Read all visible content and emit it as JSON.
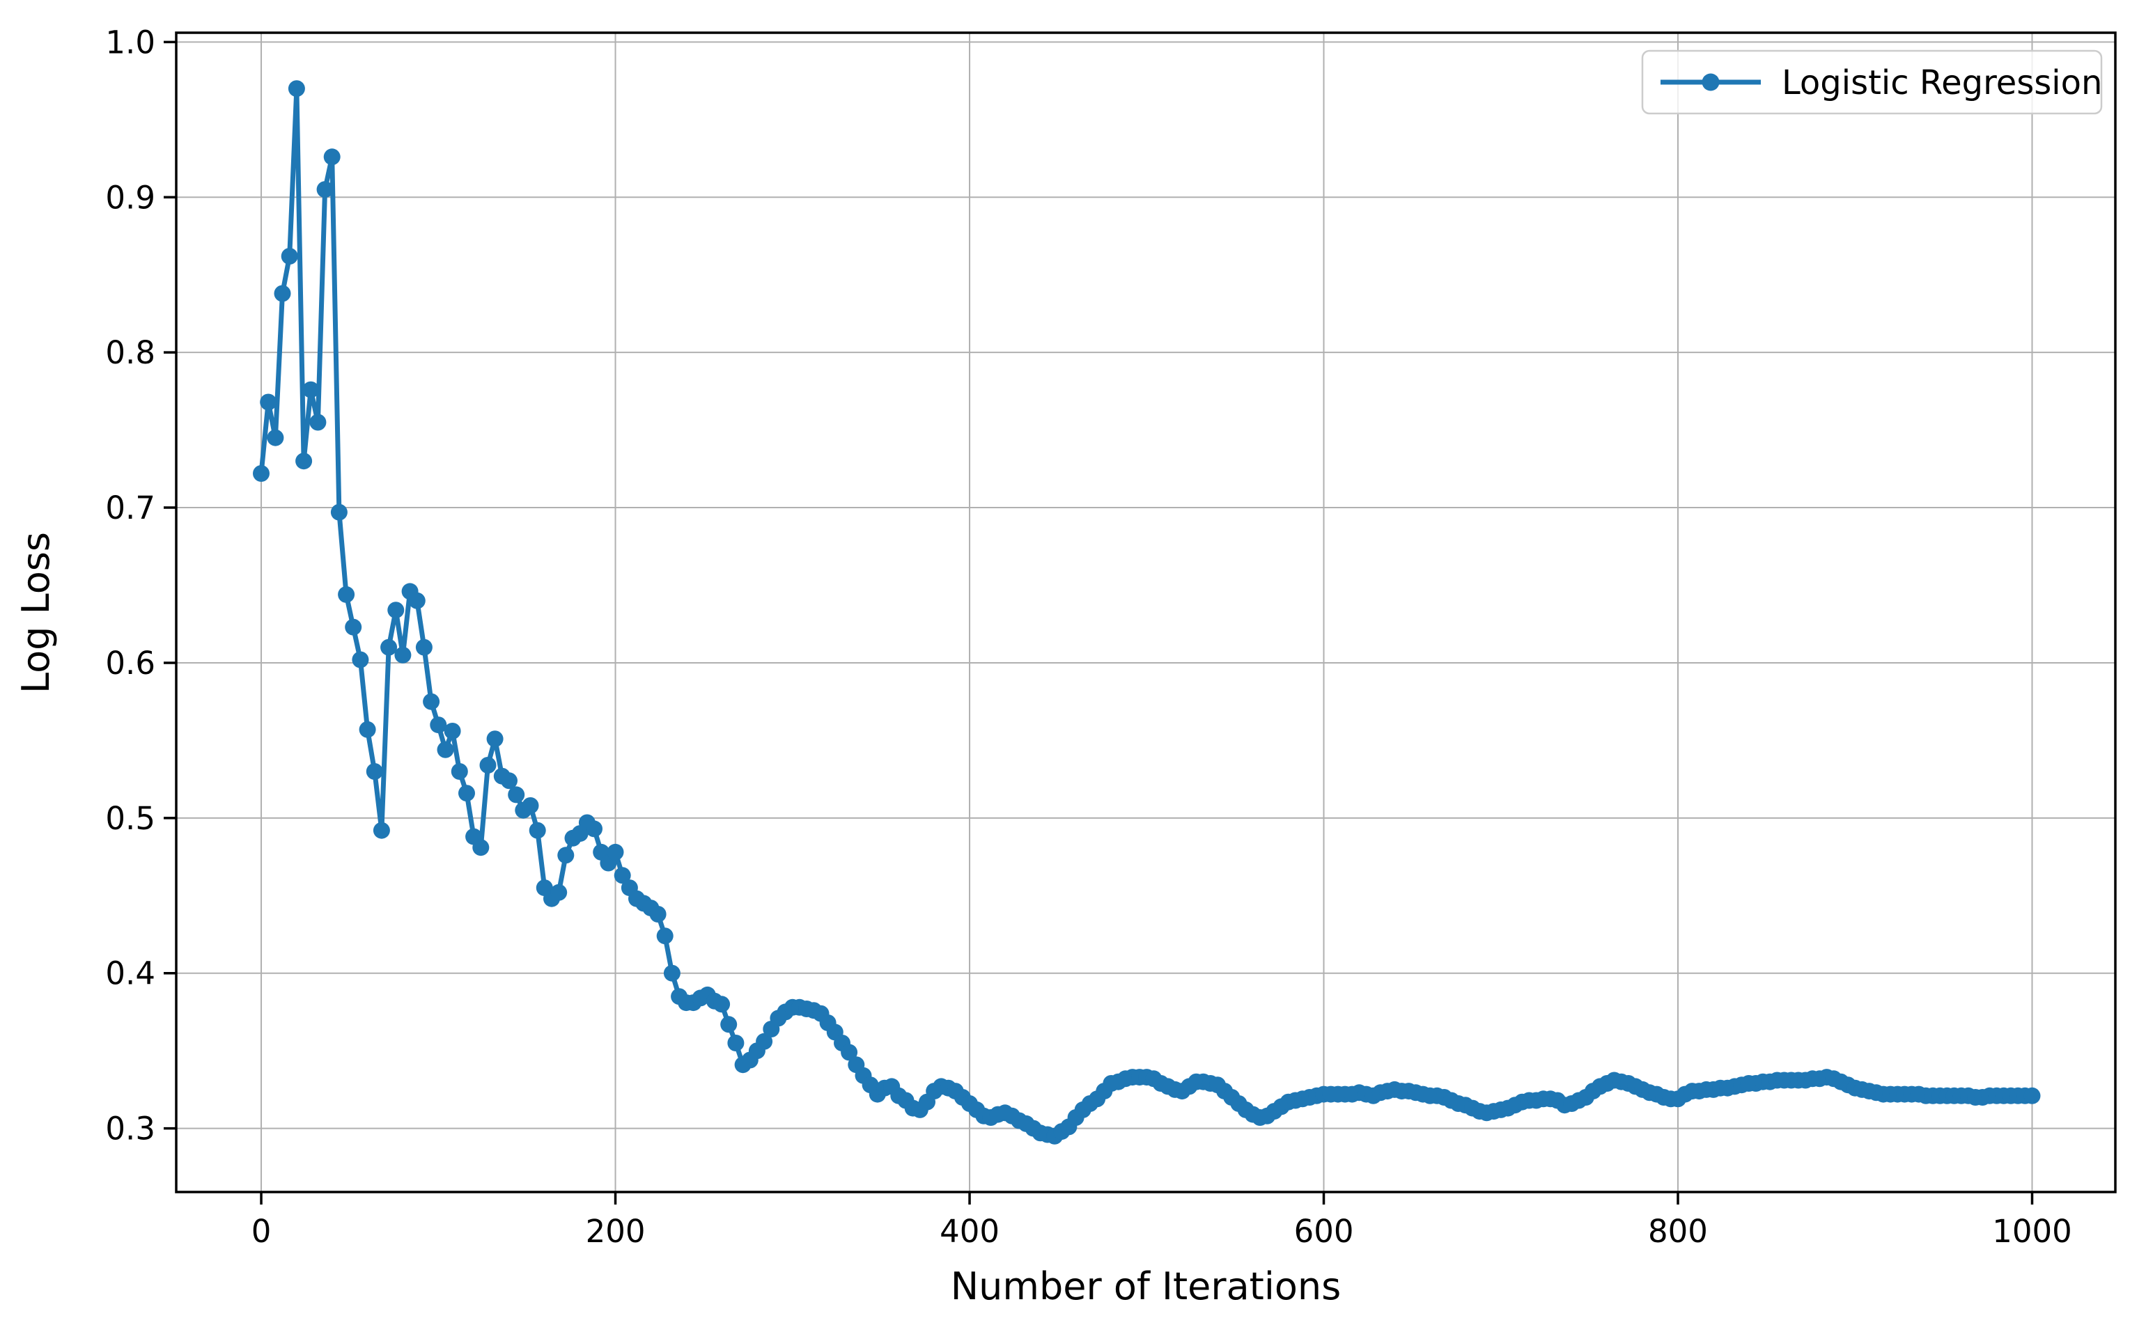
{
  "figure": {
    "background_color": "#ffffff",
    "frame_color": "#000000"
  },
  "chart_data": {
    "type": "line",
    "title": "",
    "xlabel": "Number of Iterations",
    "ylabel": "Log Loss",
    "grid": true,
    "grid_color": "#b0b0b0",
    "line_color": "#1f77b4",
    "marker": "o",
    "legend_position": "upper right",
    "legend_entries": [
      "Logistic Regression"
    ],
    "xlim": [
      -48,
      1047
    ],
    "ylim": [
      0.259,
      1.006
    ],
    "x_ticks": [
      0,
      200,
      400,
      600,
      800,
      1000
    ],
    "x_tick_labels": [
      "0",
      "200",
      "400",
      "600",
      "800",
      "1000"
    ],
    "y_ticks": [
      0.3,
      0.4,
      0.5,
      0.6,
      0.7,
      0.8,
      0.9,
      1.0
    ],
    "y_tick_labels": [
      "0.3",
      "0.4",
      "0.5",
      "0.6",
      "0.7",
      "0.8",
      "0.9",
      "1.0"
    ],
    "series": [
      {
        "name": "Logistic Regression",
        "x_start": 0,
        "x_step": 4,
        "x": [
          0,
          4,
          8,
          12,
          16,
          20,
          24,
          28,
          32,
          36,
          40,
          44,
          48,
          52,
          56,
          60,
          64,
          68,
          72,
          76,
          80,
          84,
          88,
          92,
          96,
          100,
          104,
          108,
          112,
          116,
          120,
          124,
          128,
          132,
          136,
          140,
          144,
          148,
          152,
          156,
          160,
          164,
          168,
          172,
          176,
          180,
          184,
          188,
          192,
          196,
          200,
          204,
          208,
          212,
          216,
          220,
          224,
          228,
          232,
          236,
          240,
          244,
          248,
          252,
          256,
          260,
          264,
          268,
          272,
          276,
          280,
          284,
          288,
          292,
          296,
          300,
          304,
          308,
          312,
          316,
          320,
          324,
          328,
          332,
          336,
          340,
          344,
          348,
          352,
          356,
          360,
          364,
          368,
          372,
          376,
          380,
          384,
          388,
          392,
          396,
          400,
          404,
          408,
          412,
          416,
          420,
          424,
          428,
          432,
          436,
          440,
          444,
          448,
          452,
          456,
          460,
          464,
          468,
          472,
          476,
          480,
          484,
          488,
          492,
          496,
          500,
          504,
          508,
          512,
          516,
          520,
          524,
          528,
          532,
          536,
          540,
          544,
          548,
          552,
          556,
          560,
          564,
          568,
          572,
          576,
          580,
          584,
          588,
          592,
          596,
          600,
          604,
          608,
          612,
          616,
          620,
          624,
          628,
          632,
          636,
          640,
          644,
          648,
          652,
          656,
          660,
          664,
          668,
          672,
          676,
          680,
          684,
          688,
          692,
          696,
          700,
          704,
          708,
          712,
          716,
          720,
          724,
          728,
          732,
          736,
          740,
          744,
          748,
          752,
          756,
          760,
          764,
          768,
          772,
          776,
          780,
          784,
          788,
          792,
          796,
          800,
          804,
          808,
          812,
          816,
          820,
          824,
          828,
          832,
          836,
          840,
          844,
          848,
          852,
          856,
          860,
          864,
          868,
          872,
          876,
          880,
          884,
          888,
          892,
          896,
          900,
          904,
          908,
          912,
          916,
          920,
          924,
          928,
          932,
          936,
          940,
          944,
          948,
          952,
          956,
          960,
          964,
          968,
          972,
          976,
          980,
          984,
          988,
          992,
          996,
          1000
        ],
        "y": [
          0.722,
          0.768,
          0.745,
          0.838,
          0.862,
          0.97,
          0.73,
          0.776,
          0.755,
          0.905,
          0.926,
          0.697,
          0.644,
          0.623,
          0.602,
          0.557,
          0.53,
          0.492,
          0.61,
          0.634,
          0.605,
          0.646,
          0.64,
          0.61,
          0.575,
          0.56,
          0.544,
          0.556,
          0.53,
          0.516,
          0.488,
          0.481,
          0.534,
          0.551,
          0.527,
          0.524,
          0.515,
          0.505,
          0.508,
          0.492,
          0.455,
          0.448,
          0.452,
          0.476,
          0.487,
          0.49,
          0.497,
          0.493,
          0.478,
          0.471,
          0.478,
          0.463,
          0.455,
          0.448,
          0.445,
          0.442,
          0.438,
          0.424,
          0.4,
          0.385,
          0.381,
          0.381,
          0.384,
          0.386,
          0.382,
          0.38,
          0.367,
          0.355,
          0.341,
          0.344,
          0.35,
          0.356,
          0.364,
          0.371,
          0.375,
          0.378,
          0.378,
          0.377,
          0.376,
          0.374,
          0.368,
          0.362,
          0.355,
          0.349,
          0.341,
          0.334,
          0.328,
          0.322,
          0.326,
          0.327,
          0.321,
          0.318,
          0.313,
          0.312,
          0.317,
          0.324,
          0.327,
          0.326,
          0.324,
          0.32,
          0.316,
          0.312,
          0.308,
          0.307,
          0.309,
          0.31,
          0.308,
          0.305,
          0.303,
          0.3,
          0.297,
          0.296,
          0.295,
          0.298,
          0.301,
          0.307,
          0.312,
          0.316,
          0.319,
          0.324,
          0.329,
          0.33,
          0.332,
          0.333,
          0.333,
          0.333,
          0.332,
          0.329,
          0.327,
          0.325,
          0.324,
          0.327,
          0.33,
          0.33,
          0.329,
          0.328,
          0.324,
          0.32,
          0.316,
          0.312,
          0.309,
          0.307,
          0.308,
          0.311,
          0.314,
          0.317,
          0.318,
          0.319,
          0.32,
          0.321,
          0.322,
          0.322,
          0.322,
          0.322,
          0.322,
          0.323,
          0.322,
          0.321,
          0.323,
          0.324,
          0.325,
          0.324,
          0.324,
          0.323,
          0.322,
          0.321,
          0.321,
          0.32,
          0.318,
          0.316,
          0.315,
          0.313,
          0.311,
          0.31,
          0.311,
          0.312,
          0.313,
          0.315,
          0.317,
          0.318,
          0.318,
          0.319,
          0.319,
          0.318,
          0.315,
          0.316,
          0.318,
          0.32,
          0.324,
          0.327,
          0.329,
          0.331,
          0.33,
          0.329,
          0.327,
          0.325,
          0.323,
          0.322,
          0.32,
          0.319,
          0.319,
          0.322,
          0.324,
          0.324,
          0.325,
          0.325,
          0.326,
          0.326,
          0.327,
          0.328,
          0.329,
          0.329,
          0.33,
          0.33,
          0.331,
          0.331,
          0.331,
          0.331,
          0.331,
          0.332,
          0.332,
          0.333,
          0.332,
          0.33,
          0.328,
          0.326,
          0.325,
          0.324,
          0.323,
          0.322,
          0.322,
          0.322,
          0.322,
          0.322,
          0.322,
          0.321,
          0.321,
          0.321,
          0.321,
          0.321,
          0.321,
          0.321,
          0.32,
          0.32,
          0.321,
          0.321,
          0.321,
          0.321,
          0.321,
          0.321,
          0.321
        ]
      }
    ]
  }
}
